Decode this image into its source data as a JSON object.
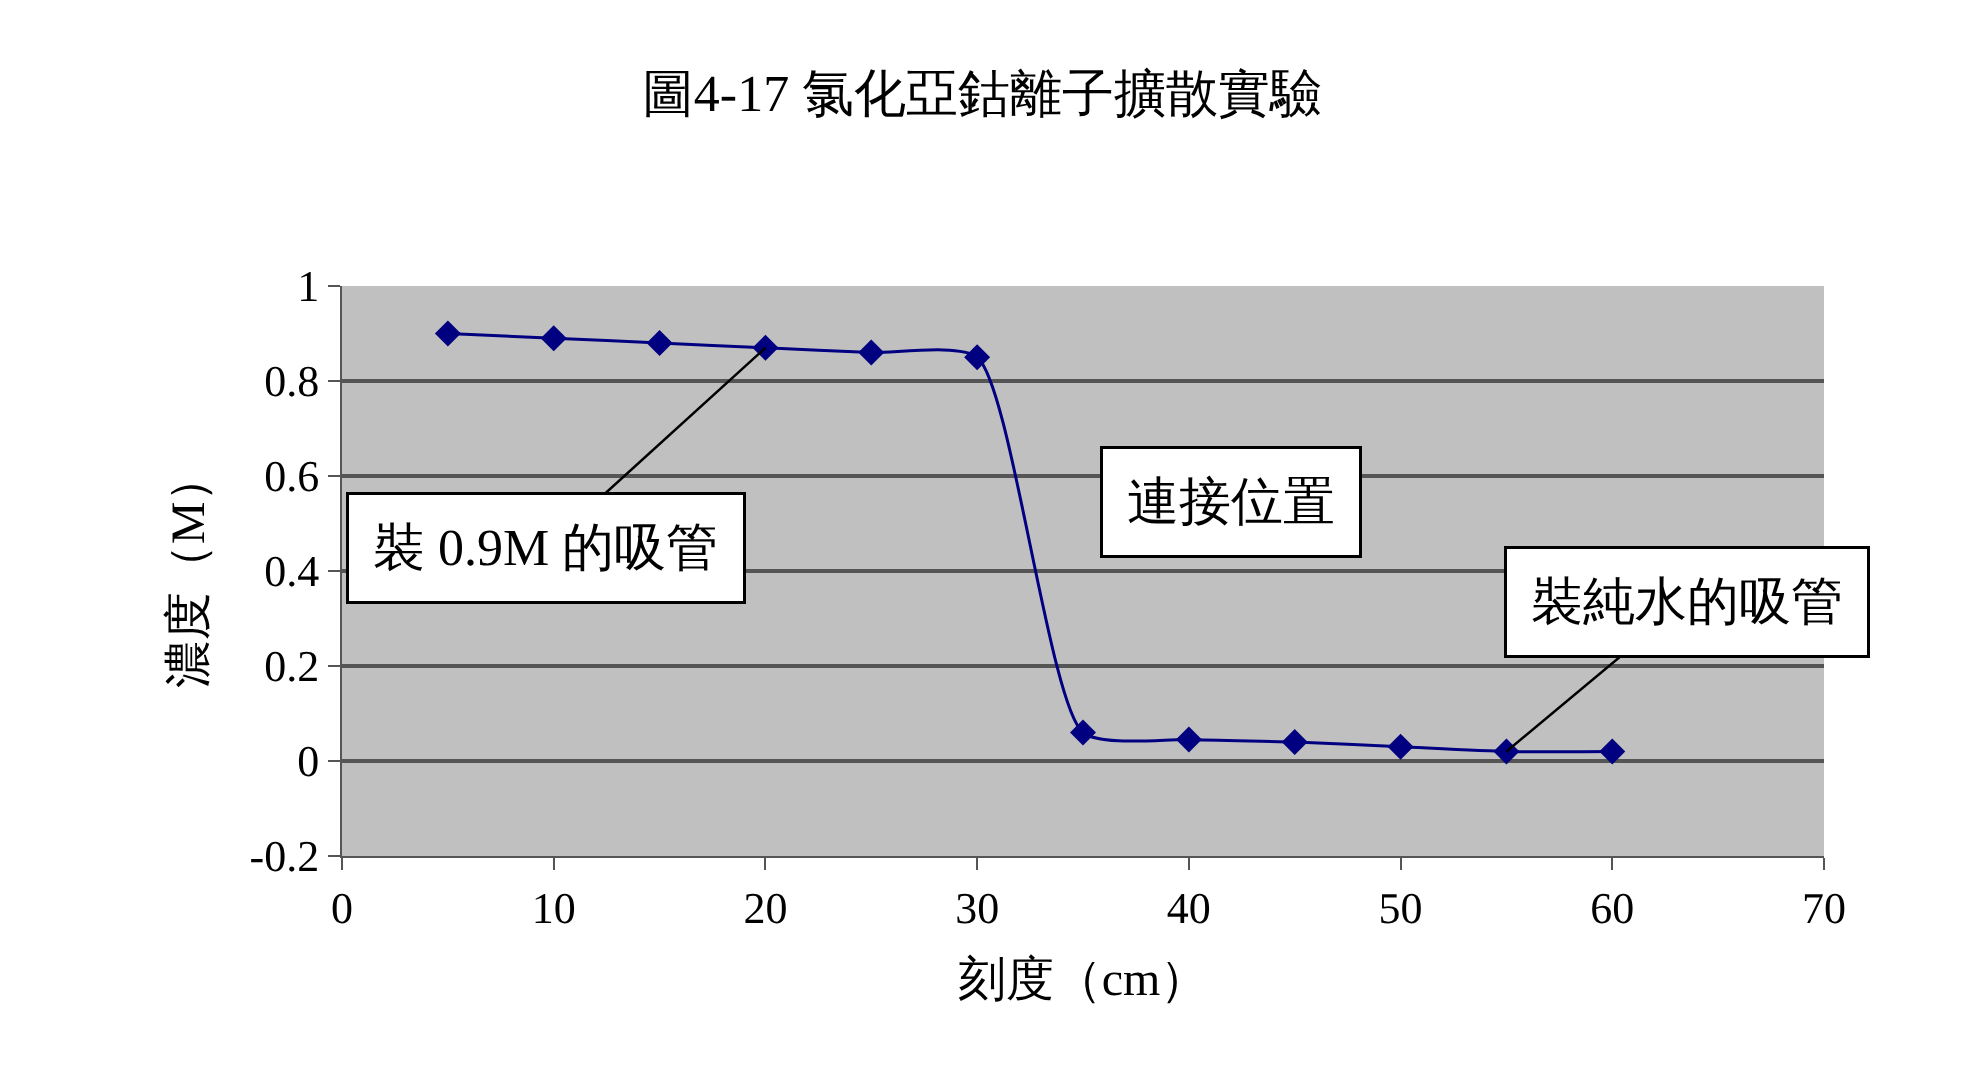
{
  "chart_data": {
    "type": "line",
    "title": "圖4-17 氯化亞鈷離子擴散實驗",
    "xlabel": "刻度（cm）",
    "ylabel": "濃度（M）",
    "x": [
      5,
      10,
      15,
      20,
      25,
      30,
      35,
      40,
      45,
      50,
      55,
      60
    ],
    "series": [
      {
        "color": "#000080",
        "values": [
          0.9,
          0.89,
          0.88,
          0.87,
          0.86,
          0.85,
          0.06,
          0.045,
          0.04,
          0.03,
          0.02,
          0.02
        ]
      }
    ],
    "xlim": [
      0,
      70
    ],
    "xticks": [
      0,
      10,
      20,
      30,
      40,
      50,
      60,
      70
    ],
    "ylim": [
      -0.2,
      1
    ],
    "yticks": [
      -0.2,
      0,
      0.2,
      0.4,
      0.6,
      0.8,
      1
    ],
    "grid": "y",
    "marker": "diamond",
    "line_style": "solid",
    "annotations": [
      {
        "text": "裝 0.9M 的吸管",
        "x": 20,
        "y": 0.87
      },
      "連接位置",
      {
        "text": "裝純水的吸管",
        "x": 55,
        "y": 0.02
      }
    ]
  }
}
